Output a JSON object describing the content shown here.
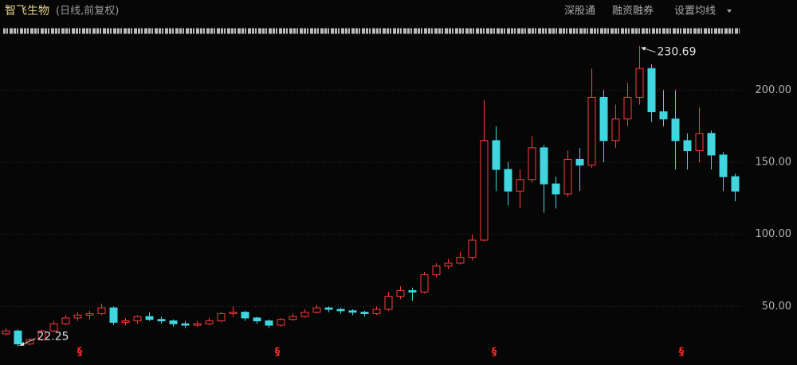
{
  "header": {
    "title": "智飞生物",
    "subtitle": "(日线,前复权)",
    "buttons": [
      "深股通",
      "融资融券",
      "设置均线"
    ]
  },
  "chart_data": {
    "type": "candlestick",
    "open": [
      31,
      33,
      24,
      27,
      33,
      38,
      42,
      44,
      45,
      49,
      39,
      40,
      43,
      41,
      40,
      38,
      37,
      38,
      40,
      45,
      46,
      42,
      40,
      37,
      41,
      43,
      46,
      49,
      48,
      47,
      46,
      45,
      48,
      57,
      61,
      60,
      72,
      78,
      80,
      84,
      96,
      165,
      145,
      130,
      138,
      160,
      135,
      128,
      152,
      148,
      195,
      165,
      180,
      195,
      215,
      185,
      180,
      165,
      158,
      170,
      155,
      140
    ],
    "high": [
      35,
      34,
      28,
      34,
      40,
      44,
      46,
      47,
      52,
      50,
      42,
      44,
      46,
      43,
      41,
      40,
      40,
      42,
      46,
      50,
      47,
      43,
      41,
      42,
      45,
      48,
      51,
      50,
      49,
      48,
      47,
      50,
      60,
      64,
      63,
      74,
      80,
      83,
      88,
      100,
      193,
      175,
      150,
      145,
      168,
      162,
      140,
      158,
      160,
      215,
      200,
      190,
      205,
      230.69,
      218,
      200,
      200,
      170,
      188,
      172,
      157,
      142
    ],
    "low": [
      30,
      22.25,
      23,
      26,
      32,
      37,
      40,
      41,
      44,
      37,
      37,
      38,
      40,
      38,
      36,
      35,
      36,
      37,
      39,
      43,
      40,
      38,
      35,
      36,
      40,
      42,
      45,
      46,
      45,
      44,
      43,
      44,
      47,
      55,
      54,
      59,
      70,
      76,
      79,
      82,
      95,
      130,
      120,
      118,
      136,
      115,
      118,
      126,
      130,
      146,
      150,
      160,
      175,
      190,
      178,
      175,
      145,
      145,
      150,
      145,
      130,
      123
    ],
    "close": [
      33,
      24,
      27,
      33,
      38,
      42,
      44,
      45,
      49,
      39,
      40,
      43,
      41,
      40,
      38,
      37,
      38,
      40,
      45,
      46,
      42,
      40,
      37,
      41,
      43,
      46,
      49,
      48,
      47,
      46,
      45,
      48,
      57,
      61,
      60,
      72,
      78,
      80,
      84,
      96,
      165,
      145,
      130,
      138,
      160,
      135,
      128,
      152,
      148,
      195,
      165,
      180,
      195,
      215,
      185,
      180,
      165,
      158,
      170,
      155,
      140,
      130
    ],
    "up_color": "#ff3b3b",
    "down_color": "#3fd6e0",
    "ylim": [
      9.4,
      237.7
    ],
    "yticks": [
      {
        "value": 50,
        "label": "50.00"
      },
      {
        "value": 100,
        "label": "100.00"
      },
      {
        "value": 150,
        "label": "150.00"
      },
      {
        "value": 200,
        "label": "200.00"
      }
    ],
    "grid": true,
    "annotations": {
      "high": "230.69",
      "low": "22.25"
    },
    "event_markers": [
      "§",
      "§",
      "§",
      "§"
    ]
  }
}
